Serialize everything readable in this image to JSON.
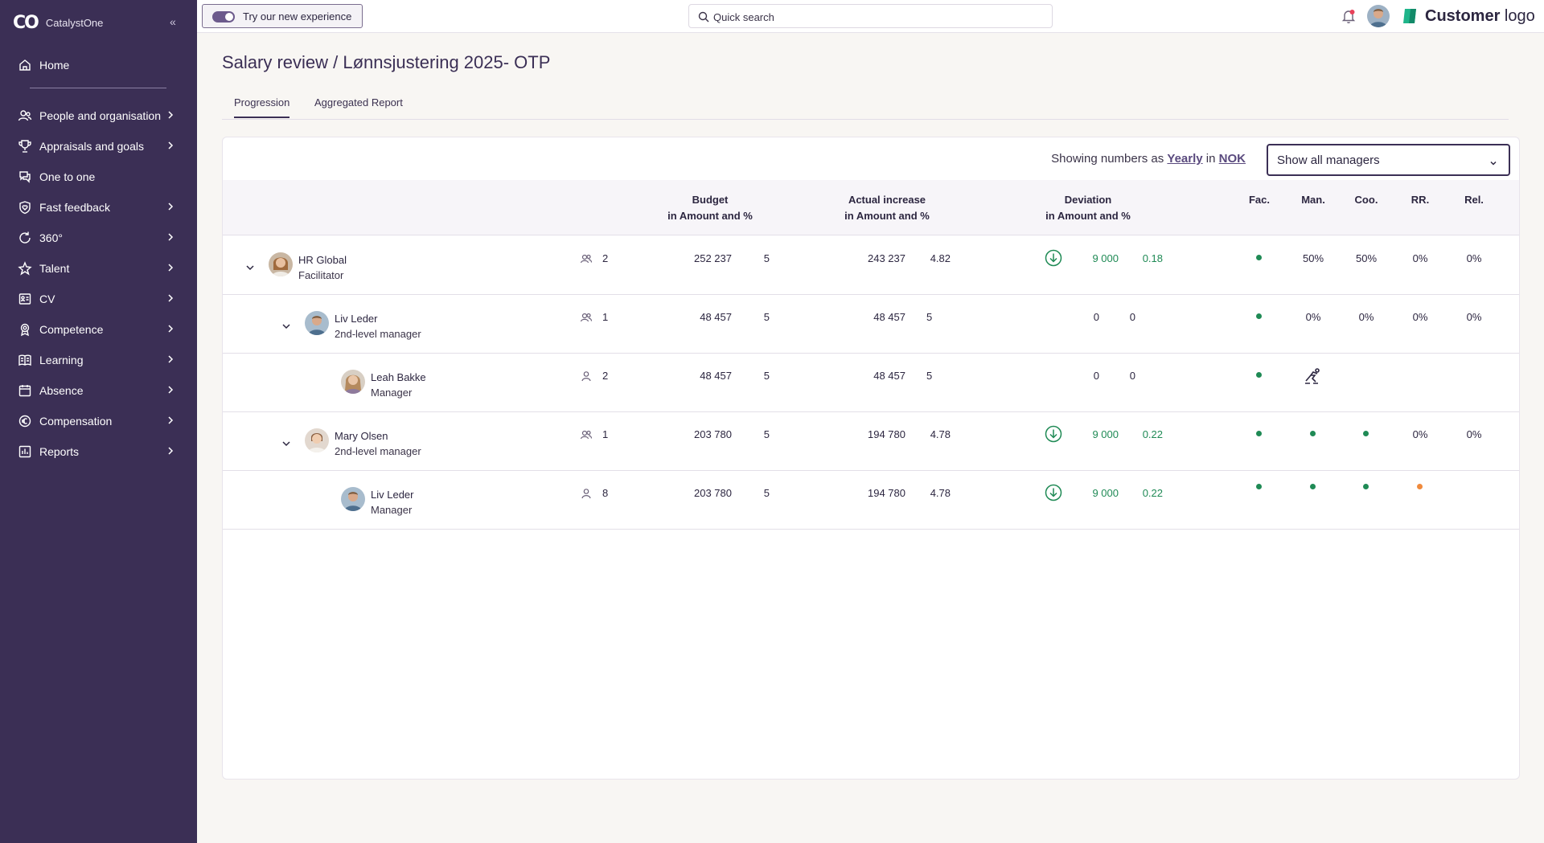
{
  "app": {
    "brand_name": "CatalystOne",
    "brand_mark": "CO",
    "collapse_label": "«"
  },
  "sidebar": {
    "items": [
      {
        "label": "Home",
        "icon": "home-icon"
      },
      {
        "label": "People and organisation",
        "icon": "people-icon"
      },
      {
        "label": "Appraisals and goals",
        "icon": "trophy-icon"
      },
      {
        "label": "One to one",
        "icon": "chat-icon"
      },
      {
        "label": "Fast feedback",
        "icon": "heart-shield-icon"
      },
      {
        "label": "360°",
        "icon": "refresh-icon"
      },
      {
        "label": "Talent",
        "icon": "star-icon"
      },
      {
        "label": "CV",
        "icon": "cv-icon"
      },
      {
        "label": "Competence",
        "icon": "badge-icon"
      },
      {
        "label": "Learning",
        "icon": "book-icon"
      },
      {
        "label": "Absence",
        "icon": "calendar-icon"
      },
      {
        "label": "Compensation",
        "icon": "coin-icon"
      },
      {
        "label": "Reports",
        "icon": "bar-chart-icon"
      }
    ]
  },
  "topbar": {
    "try_label": "Try our new experience",
    "search_placeholder": "Quick search",
    "logo_bold": "Customer",
    "logo_light": " logo"
  },
  "page": {
    "title": "Salary review / Lønnsjustering 2025- OTP",
    "tabs": [
      "Progression",
      "Aggregated Report"
    ],
    "active_tab": "Progression",
    "showing_prefix": "Showing numbers as",
    "showing_period": "Yearly",
    "showing_in": "in",
    "showing_currency": "NOK",
    "manager_filter": "Show all managers"
  },
  "table": {
    "headers": {
      "budget": "Budget",
      "actual": "Actual increase",
      "deviation": "Deviation",
      "sub": "in Amount and %",
      "fac": "Fac.",
      "man": "Man.",
      "coo": "Coo.",
      "rr": "RR.",
      "rel": "Rel."
    },
    "rows": [
      {
        "name": "HR Global",
        "role": "Facilitator",
        "count": "2",
        "budget_amt": "252 237",
        "budget_pct": "5",
        "actual_amt": "243 237",
        "actual_pct": "4.82",
        "dev_amt": "9 000",
        "dev_pct": "0.18",
        "dev_down": true,
        "fac": "dot-green",
        "man": "50%",
        "coo": "50%",
        "rr": "0%",
        "rel": "0%"
      },
      {
        "name": "Liv Leder",
        "role": "2nd-level manager",
        "count": "1",
        "budget_amt": "48 457",
        "budget_pct": "5",
        "actual_amt": "48 457",
        "actual_pct": "5",
        "dev_amt": "0",
        "dev_pct": "0",
        "dev_down": false,
        "fac": "dot-green",
        "man": "0%",
        "coo": "0%",
        "rr": "0%",
        "rel": "0%"
      },
      {
        "name": "Leah Bakke",
        "role": "Manager",
        "count": "2",
        "budget_amt": "48 457",
        "budget_pct": "5",
        "actual_amt": "48 457",
        "actual_pct": "5",
        "dev_amt": "0",
        "dev_pct": "0",
        "dev_down": false,
        "fac": "dot-green",
        "man": "skater-icon",
        "coo": "",
        "rr": "",
        "rel": ""
      },
      {
        "name": "Mary Olsen",
        "role": "2nd-level manager",
        "count": "1",
        "budget_amt": "203 780",
        "budget_pct": "5",
        "actual_amt": "194 780",
        "actual_pct": "4.78",
        "dev_amt": "9 000",
        "dev_pct": "0.22",
        "dev_down": true,
        "fac": "dot-green",
        "man": "dot-green",
        "coo": "dot-green",
        "rr": "0%",
        "rel": "0%"
      },
      {
        "name": "Liv Leder",
        "role": "Manager",
        "count": "8",
        "budget_amt": "203 780",
        "budget_pct": "5",
        "actual_amt": "194 780",
        "actual_pct": "4.78",
        "dev_amt": "9 000",
        "dev_pct": "0.22",
        "dev_down": true,
        "fac": "dot-green",
        "man": "dot-green",
        "coo": "dot-green",
        "rr": "dot-orange",
        "rel": ""
      }
    ]
  },
  "colors": {
    "sidebar": "#3b2f55",
    "positive": "#1f8a55",
    "warning": "#f08a3c",
    "logo": "#1fb58a"
  }
}
